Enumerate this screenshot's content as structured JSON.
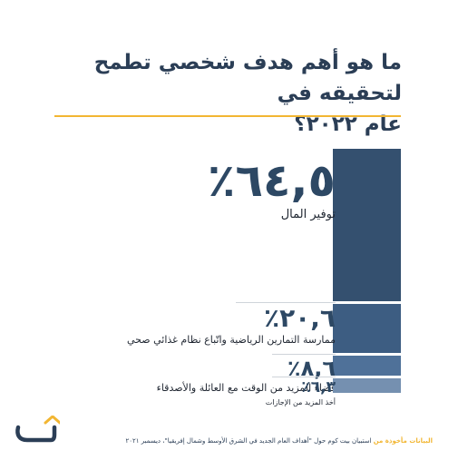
{
  "title_line1": "ما هو أهم هدف شخصي تطمح لتحقيقه في",
  "title_line2": "عام ٢٠٢٢؟",
  "accent_color": "#f2b632",
  "chart_data": {
    "type": "bar",
    "orientation": "stacked-vertical",
    "categories": [
      "توفير المال",
      "ممارسة التمارين الرياضية واتّباع نظام غذائي صحي",
      "قضاء المزيد من الوقت مع العائلة والأصدقاء",
      "أخذ المزيد من الإجازات"
    ],
    "values": [
      64.5,
      20.6,
      8.6,
      6.3
    ],
    "value_labels": [
      "٦٤,٥٪",
      "٢٠,٦٪",
      "٨,٦٪",
      "٦,٣٪"
    ],
    "colors": [
      "#34506f",
      "#3d5d82",
      "#4f7199",
      "#7590b0"
    ],
    "unit": "%"
  },
  "footer": {
    "source_prefix": "البيانات مأخوذة من",
    "source_text": "استبيان بيت كوم حول \"أهداف العام الجديد في الشرق الأوسط وشمال إفريقيا\"، ديسمبر ٢٠٢١"
  },
  "logo": {
    "name": "bayt-logo-icon"
  }
}
